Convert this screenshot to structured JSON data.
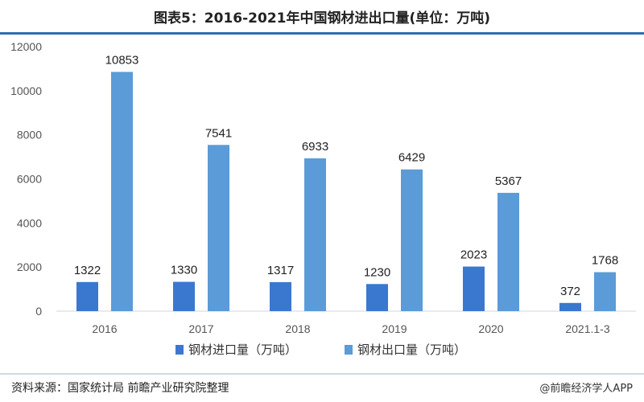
{
  "header": {
    "title": "图表5：2016-2021年中国钢材进出口量(单位：万吨)"
  },
  "footer": {
    "source": "资料来源：国家统计局 前瞻产业研究院整理",
    "credit": "@前瞻经济学人APP"
  },
  "chart_data": {
    "type": "bar",
    "title": "图表5：2016-2021年中国钢材进出口量(单位：万吨)",
    "categories": [
      "2016",
      "2017",
      "2018",
      "2019",
      "2020",
      "2021.1-3"
    ],
    "series": [
      {
        "name": "钢材进口量（万吨）",
        "values": [
          1322,
          1330,
          1317,
          1230,
          2023,
          372
        ],
        "color": "#3a78d0"
      },
      {
        "name": "钢材出口量（万吨）",
        "values": [
          10853,
          7541,
          6933,
          6429,
          5367,
          1768
        ],
        "color": "#5b9bd8"
      }
    ],
    "yticks": [
      0,
      2000,
      4000,
      6000,
      8000,
      10000,
      12000
    ],
    "ylim": [
      0,
      12000
    ],
    "grid": false,
    "legend": "bottom"
  }
}
